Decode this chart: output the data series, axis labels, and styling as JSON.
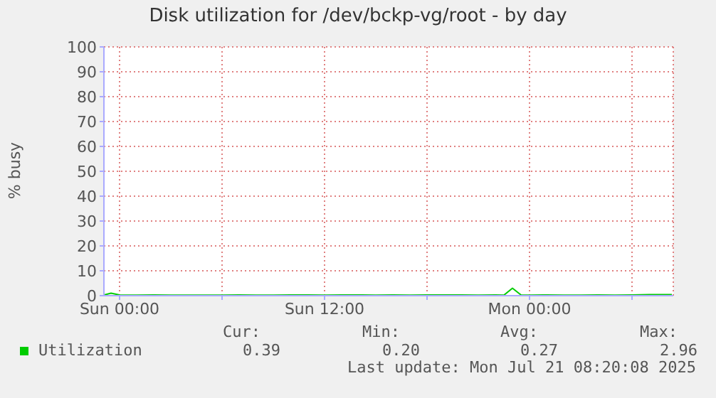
{
  "chart_data": {
    "type": "line",
    "title": "Disk utilization for /dev/bckp-vg/root - by day",
    "ylabel": "% busy",
    "x": [
      "2025-07-19T23:05",
      "2025-07-19T23:30",
      "2025-07-20T00:00",
      "2025-07-20T01:00",
      "2025-07-20T02:00",
      "2025-07-20T03:00",
      "2025-07-20T04:00",
      "2025-07-20T05:00",
      "2025-07-20T06:00",
      "2025-07-20T07:00",
      "2025-07-20T08:00",
      "2025-07-20T09:00",
      "2025-07-20T10:00",
      "2025-07-20T11:00",
      "2025-07-20T12:00",
      "2025-07-20T13:00",
      "2025-07-20T14:00",
      "2025-07-20T15:00",
      "2025-07-20T16:00",
      "2025-07-20T17:00",
      "2025-07-20T18:00",
      "2025-07-20T19:00",
      "2025-07-20T20:00",
      "2025-07-20T21:00",
      "2025-07-20T22:00",
      "2025-07-20T22:30",
      "2025-07-20T23:00",
      "2025-07-20T23:30",
      "2025-07-21T00:00",
      "2025-07-21T01:00",
      "2025-07-21T02:00",
      "2025-07-21T03:00",
      "2025-07-21T04:00",
      "2025-07-21T05:00",
      "2025-07-21T06:00",
      "2025-07-21T07:00",
      "2025-07-21T08:00",
      "2025-07-21T08:20"
    ],
    "series": [
      {
        "name": "Utilization",
        "color": "#00cc00",
        "values": [
          0.3,
          1,
          0.3,
          0.2,
          0.3,
          0.2,
          0.2,
          0.2,
          0.2,
          0.3,
          0.2,
          0.2,
          0.3,
          0.3,
          0.2,
          0.3,
          0.3,
          0.2,
          0.3,
          0.2,
          0.3,
          0.3,
          0.3,
          0.2,
          0.3,
          0.2,
          3,
          0.3,
          0.2,
          0.3,
          0.2,
          0.2,
          0.3,
          0.2,
          0.3,
          0.4,
          0.4,
          0.4
        ]
      }
    ],
    "xlim": [
      "2025-07-19T23:05",
      "2025-07-21T08:25"
    ],
    "xticks": [
      {
        "value": "2025-07-20T00:00",
        "label": "Sun 00:00"
      },
      {
        "value": "2025-07-20T06:00",
        "label": null
      },
      {
        "value": "2025-07-20T12:00",
        "label": "Sun 12:00"
      },
      {
        "value": "2025-07-20T18:00",
        "label": null
      },
      {
        "value": "2025-07-21T00:00",
        "label": "Mon 00:00"
      },
      {
        "value": "2025-07-21T06:00",
        "label": null
      }
    ],
    "ylim": [
      0,
      100
    ],
    "yticks": [
      0,
      10,
      20,
      30,
      40,
      50,
      60,
      70,
      80,
      90,
      100
    ],
    "grid": true,
    "legend": "bottom",
    "marker": "none",
    "line_style": "solid",
    "annotations": [
      "Cur:",
      "Min:",
      "Avg:",
      "Max:",
      "0.39",
      "0.20",
      "0.27",
      "2.96",
      "Last update: Mon Jul 21 08:20:08 2025"
    ]
  }
}
